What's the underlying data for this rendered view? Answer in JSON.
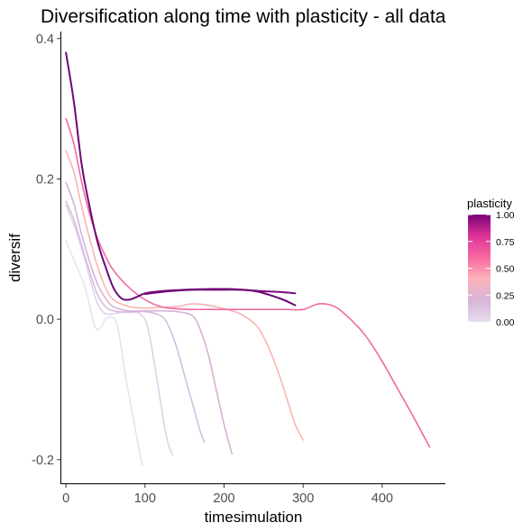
{
  "chart_data": {
    "type": "line",
    "title": "Diversification along time with plasticity - all data",
    "xlabel": "timesimulation",
    "ylabel": "diversif",
    "xlim": [
      -7,
      480
    ],
    "ylim": [
      -0.235,
      0.41
    ],
    "x_ticks": [
      0,
      100,
      200,
      300,
      400
    ],
    "x_tick_labels": [
      "0",
      "100",
      "200",
      "300",
      "400"
    ],
    "y_ticks": [
      -0.2,
      0.0,
      0.2,
      0.4
    ],
    "y_tick_labels": [
      "-0.2",
      "0.0",
      "0.2",
      "0.4"
    ],
    "grid": false,
    "legend": {
      "title": "plasticity",
      "position": "right",
      "type": "colorbar",
      "range": [
        0.0,
        1.0
      ],
      "ticks": [
        1.0,
        0.75,
        0.5,
        0.25,
        0.0
      ],
      "tick_labels": [
        "1.00",
        "0.75",
        "0.50",
        "0.25",
        "0.00"
      ],
      "colors": [
        "#e5dcee",
        "#d7b5d8",
        "#fbb4b9",
        "#f768a1",
        "#dd3497",
        "#7a0177"
      ]
    },
    "series": [
      {
        "plasticity": 0.0,
        "color": "#e9e2f0",
        "x": [
          0,
          5,
          10,
          15,
          20,
          25,
          30,
          35,
          40,
          45,
          50,
          55,
          60,
          65,
          70,
          75,
          80,
          85,
          90,
          95,
          97
        ],
        "y": [
          0.112,
          0.098,
          0.085,
          0.072,
          0.058,
          0.042,
          0.02,
          -0.005,
          -0.015,
          -0.01,
          0.0,
          0.003,
          0.002,
          -0.01,
          -0.04,
          -0.08,
          -0.11,
          -0.14,
          -0.17,
          -0.2,
          -0.208
        ]
      },
      {
        "plasticity": 0.07,
        "color": "#dfd1ea",
        "x": [
          0,
          10,
          20,
          30,
          40,
          50,
          60,
          70,
          80,
          90,
          100,
          105,
          110,
          115,
          120,
          125,
          130,
          135
        ],
        "y": [
          0.162,
          0.135,
          0.1,
          0.06,
          0.022,
          0.008,
          0.008,
          0.01,
          0.011,
          0.01,
          0.0,
          -0.02,
          -0.05,
          -0.085,
          -0.12,
          -0.155,
          -0.18,
          -0.193
        ]
      },
      {
        "plasticity": 0.12,
        "color": "#d6bedf",
        "x": [
          0,
          10,
          20,
          30,
          40,
          50,
          60,
          80,
          100,
          120,
          130,
          140,
          150,
          160,
          170,
          175
        ],
        "y": [
          0.168,
          0.142,
          0.105,
          0.068,
          0.035,
          0.018,
          0.012,
          0.01,
          0.011,
          0.005,
          -0.01,
          -0.04,
          -0.08,
          -0.12,
          -0.16,
          -0.175
        ]
      },
      {
        "plasticity": 0.17,
        "color": "#d6b2d6",
        "x": [
          0,
          10,
          20,
          30,
          40,
          50,
          60,
          80,
          100,
          120,
          140,
          160,
          170,
          180,
          190,
          200,
          210
        ],
        "y": [
          0.195,
          0.165,
          0.12,
          0.082,
          0.05,
          0.03,
          0.018,
          0.012,
          0.012,
          0.012,
          0.011,
          0.005,
          -0.015,
          -0.05,
          -0.1,
          -0.15,
          -0.192
        ]
      },
      {
        "plasticity": 0.32,
        "color": "#fbb4b2",
        "x": [
          0,
          10,
          20,
          30,
          40,
          50,
          60,
          80,
          100,
          120,
          140,
          160,
          180,
          200,
          220,
          240,
          250,
          260,
          270,
          280,
          290,
          300
        ],
        "y": [
          0.24,
          0.21,
          0.16,
          0.115,
          0.075,
          0.045,
          0.028,
          0.018,
          0.016,
          0.017,
          0.018,
          0.022,
          0.02,
          0.015,
          0.008,
          -0.008,
          -0.025,
          -0.05,
          -0.08,
          -0.115,
          -0.15,
          -0.172
        ]
      },
      {
        "plasticity": 0.58,
        "color": "#f06aa1",
        "x": [
          0,
          10,
          20,
          30,
          40,
          50,
          60,
          80,
          100,
          120,
          140,
          160,
          180,
          200,
          220,
          240,
          260,
          280,
          300,
          320,
          340,
          360,
          380,
          400,
          420,
          440,
          460
        ],
        "y": [
          0.286,
          0.25,
          0.195,
          0.15,
          0.115,
          0.09,
          0.07,
          0.045,
          0.028,
          0.018,
          0.015,
          0.014,
          0.014,
          0.014,
          0.014,
          0.014,
          0.014,
          0.014,
          0.014,
          0.022,
          0.018,
          0.0,
          -0.025,
          -0.06,
          -0.1,
          -0.14,
          -0.182
        ]
      },
      {
        "plasticity": 1.0,
        "color": "#6e0676",
        "x": [
          0,
          10,
          20,
          30,
          40,
          50,
          60,
          70,
          80,
          90,
          100,
          120,
          150,
          180,
          210,
          240,
          270,
          290
        ],
        "y": [
          0.38,
          0.31,
          0.22,
          0.16,
          0.11,
          0.075,
          0.045,
          0.03,
          0.028,
          0.032,
          0.037,
          0.04,
          0.042,
          0.043,
          0.043,
          0.04,
          0.03,
          0.02
        ]
      },
      {
        "plasticity": 0.98,
        "color": "#7b0a7e",
        "x": [
          100,
          130,
          160,
          190,
          220,
          250,
          270,
          290
        ],
        "y": [
          0.036,
          0.04,
          0.042,
          0.042,
          0.042,
          0.04,
          0.039,
          0.037
        ]
      }
    ]
  }
}
